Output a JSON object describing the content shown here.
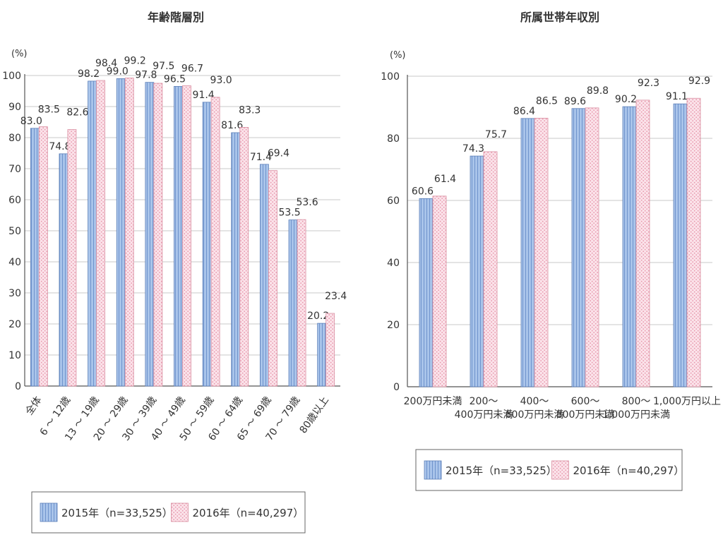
{
  "colors": {
    "series_2015_fill": "#a9c4ea",
    "series_2015_stripe": "#6f93cc",
    "series_2016_fill": "#fbe3ea",
    "series_2016_pattern": "#e89aae",
    "gridline": "#c8c8c8",
    "axis": "#555555"
  },
  "chart_data": [
    {
      "type": "bar",
      "title": "年齢階層別",
      "ylabel": "(%)",
      "ylim": [
        0,
        100
      ],
      "yticks": [
        0,
        10,
        20,
        30,
        40,
        50,
        60,
        70,
        80,
        90,
        100
      ],
      "categories": [
        "全体",
        "6 ～ 12歳",
        "13 ～ 19歳",
        "20 ～ 29歳",
        "30 ～ 39歳",
        "40 ～ 49歳",
        "50 ～ 59歳",
        "60 ～ 64歳",
        "65 ～ 69歳",
        "70 ～ 79歳",
        "80歳以上"
      ],
      "series": [
        {
          "name": "2015年（n=33,525）",
          "values": [
            83.0,
            74.8,
            98.2,
            99.0,
            97.8,
            96.5,
            91.4,
            81.6,
            71.4,
            53.5,
            20.2
          ],
          "labels": [
            "83.0",
            "74.8",
            "98.2",
            "99.0",
            "97.8",
            "96.5",
            "91.4",
            "81.6",
            "71.4",
            "53.5",
            "20.2"
          ]
        },
        {
          "name": "2016年（n=40,297）",
          "values": [
            83.5,
            82.6,
            98.4,
            99.2,
            97.5,
            96.7,
            93.0,
            83.3,
            69.4,
            53.6,
            23.4
          ],
          "labels": [
            "83.5",
            "82.6",
            "98.4",
            "99.2",
            "97.5",
            "96.7",
            "93.0",
            "83.3",
            "69.4",
            "53.6",
            "23.4"
          ]
        }
      ],
      "legend": "bottom",
      "grid": true
    },
    {
      "type": "bar",
      "title": "所属世帯年収別",
      "ylabel": "(%)",
      "ylim": [
        0,
        100
      ],
      "yticks": [
        0,
        20,
        40,
        60,
        80,
        100
      ],
      "categories": [
        "200万円未満",
        "200～\n400万円未満",
        "400～\n600万円未満",
        "600～\n800万円未満",
        "800～\n1,000万円未満",
        "1,000万円以上"
      ],
      "series": [
        {
          "name": "2015年（n=33,525）",
          "values": [
            60.6,
            74.3,
            86.4,
            89.6,
            90.2,
            91.1
          ],
          "labels": [
            "60.6",
            "74.3",
            "86.4",
            "89.6",
            "90.2",
            "91.1"
          ]
        },
        {
          "name": "2016年（n=40,297）",
          "values": [
            61.4,
            75.7,
            86.5,
            89.8,
            92.3,
            92.9
          ],
          "labels": [
            "61.4",
            "75.7",
            "86.5",
            "89.8",
            "92.3",
            "92.9"
          ]
        }
      ],
      "legend": "bottom",
      "grid": true
    }
  ]
}
